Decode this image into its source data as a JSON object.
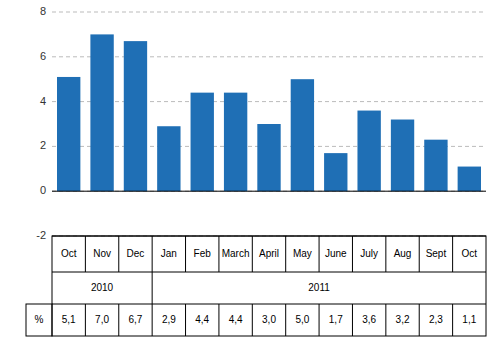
{
  "chart_data": {
    "type": "bar",
    "categories": [
      "Oct",
      "Nov",
      "Dec",
      "Jan",
      "Feb",
      "March",
      "April",
      "May",
      "June",
      "July",
      "Aug",
      "Sept",
      "Oct"
    ],
    "values": [
      5.1,
      7.0,
      6.7,
      2.9,
      4.4,
      4.4,
      3.0,
      5.0,
      1.7,
      3.6,
      3.2,
      2.3,
      1.1
    ],
    "color": "#1F6FB5",
    "ylim": [
      -2,
      8
    ],
    "yticks": [
      -2,
      0,
      2,
      4,
      6,
      8
    ],
    "grid": true,
    "data_labels": true,
    "value_labels": [
      "5,1",
      "7,0",
      "6,7",
      "2,9",
      "4,4",
      "4,4",
      "3,0",
      "5,0",
      "1,7",
      "3,6",
      "3,2",
      "2,3",
      "1,1"
    ],
    "annotations": [
      {
        "text": "2010",
        "start": 0,
        "end": 2
      },
      {
        "text": "2011",
        "start": 3,
        "end": 12
      },
      {
        "text": "%"
      }
    ]
  }
}
